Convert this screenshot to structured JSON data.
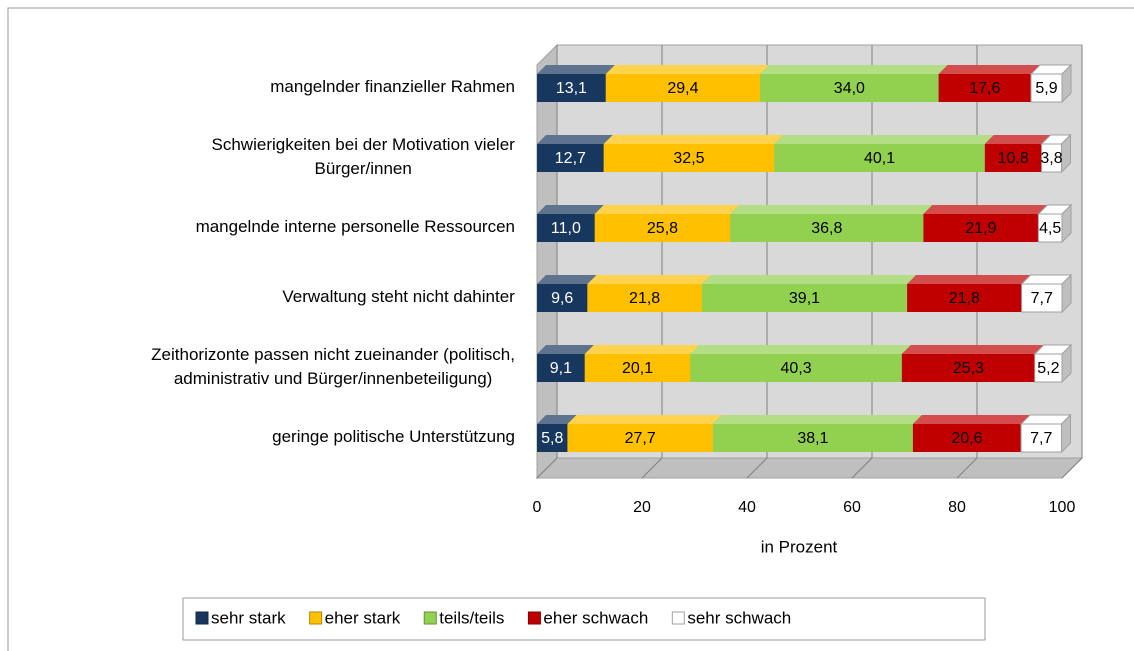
{
  "chart_data": {
    "type": "bar3d_stacked_horizontal",
    "categories": [
      "mangelnder finanzieller Rahmen",
      "Schwierigkeiten bei der Motivation vieler\nBürger/innen",
      "mangelnde interne personelle Ressourcen",
      "Verwaltung steht nicht dahinter",
      "Zeithorizonte passen nicht zueinander (politisch,\nadministrativ und Bürger/innenbeteiligung)",
      "geringe politische Unterstützung"
    ],
    "series": [
      {
        "name": "sehr stark",
        "color": "#17375e",
        "label_color": "#ffffff",
        "values": [
          13.1,
          12.7,
          11.0,
          9.6,
          9.1,
          5.8
        ],
        "value_labels": [
          "13,1",
          "12,7",
          "11,0",
          "9,6",
          "9,1",
          "5,8"
        ]
      },
      {
        "name": "eher stark",
        "color": "#ffc000",
        "label_color": "#000000",
        "values": [
          29.4,
          32.5,
          25.8,
          21.8,
          20.1,
          27.7
        ],
        "value_labels": [
          "29,4",
          "32,5",
          "25,8",
          "21,8",
          "20,1",
          "27,7"
        ]
      },
      {
        "name": "teils/teils",
        "color": "#92d050",
        "label_color": "#000000",
        "values": [
          34.0,
          40.1,
          36.8,
          39.1,
          40.3,
          38.1
        ],
        "value_labels": [
          "34,0",
          "40,1",
          "36,8",
          "39,1",
          "40,3",
          "38,1"
        ]
      },
      {
        "name": "eher schwach",
        "color": "#c00000",
        "label_color": "#000000",
        "values": [
          17.6,
          10.8,
          21.9,
          21.8,
          25.3,
          20.6
        ],
        "value_labels": [
          "17,6",
          "10,8",
          "21,9",
          "21,8",
          "25,3",
          "20,6"
        ]
      },
      {
        "name": "sehr schwach",
        "color": "#ffffff",
        "label_color": "#000000",
        "values": [
          5.9,
          3.8,
          4.5,
          7.7,
          5.2,
          7.7
        ],
        "value_labels": [
          "5,9",
          "3,8",
          "4,5",
          "7,7",
          "5,2",
          "7,7"
        ]
      }
    ],
    "x_label": "in Prozent",
    "xlim": [
      0,
      100
    ],
    "xticks": [
      0,
      20,
      40,
      60,
      80,
      100
    ],
    "grid": true,
    "legend": "bottom"
  }
}
